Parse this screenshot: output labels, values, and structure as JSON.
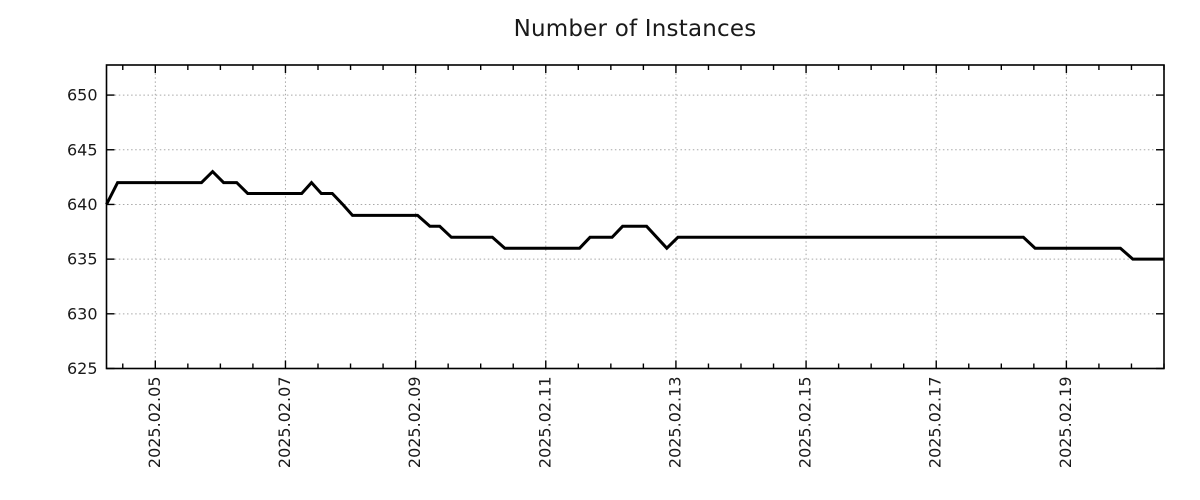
{
  "page": {
    "background": "#ffffff"
  },
  "chart_data": {
    "type": "line",
    "title": "Number of Instances",
    "xlabel": "",
    "ylabel": "",
    "legend": "none",
    "grid": "dotted gray lines at major ticks, both axes; ticks point inward and are mirrored on top and right edges",
    "x_unit": "days since 2025-02-04 00:00 (derived from visible date tick labels)",
    "xlim": [
      0.25,
      16.5
    ],
    "ylim": [
      625,
      652.75
    ],
    "y_ticks": [
      625,
      630,
      635,
      640,
      645,
      650
    ],
    "x_ticks": [
      {
        "day": 1,
        "label": "2025.02.05"
      },
      {
        "day": 3,
        "label": "2025.02.07"
      },
      {
        "day": 5,
        "label": "2025.02.09"
      },
      {
        "day": 7,
        "label": "2025.02.11"
      },
      {
        "day": 9,
        "label": "2025.02.13"
      },
      {
        "day": 11,
        "label": "2025.02.15"
      },
      {
        "day": 13,
        "label": "2025.02.17"
      },
      {
        "day": 15,
        "label": "2025.02.19"
      }
    ],
    "x_minor_tick_step": 0.5,
    "colors": {
      "line": "#000000",
      "grid": "#a8a8a8",
      "axis": "#000000",
      "text": "#1a1a1a"
    },
    "series": [
      {
        "name": "instances",
        "color": "#000000",
        "line_width": 3,
        "points": [
          [
            0.25,
            640
          ],
          [
            0.42,
            642
          ],
          [
            1.71,
            642
          ],
          [
            1.88,
            643
          ],
          [
            2.05,
            642
          ],
          [
            2.25,
            642
          ],
          [
            2.42,
            641
          ],
          [
            3.25,
            641
          ],
          [
            3.4,
            642
          ],
          [
            3.55,
            641
          ],
          [
            3.72,
            641
          ],
          [
            3.88,
            640
          ],
          [
            4.03,
            639
          ],
          [
            5.03,
            639
          ],
          [
            5.22,
            638
          ],
          [
            5.37,
            638
          ],
          [
            5.55,
            637
          ],
          [
            6.18,
            637
          ],
          [
            6.37,
            636
          ],
          [
            7.52,
            636
          ],
          [
            7.68,
            637
          ],
          [
            8.02,
            637
          ],
          [
            8.18,
            638
          ],
          [
            8.55,
            638
          ],
          [
            8.86,
            636
          ],
          [
            9.03,
            637
          ],
          [
            14.34,
            637
          ],
          [
            14.52,
            636
          ],
          [
            15.83,
            636
          ],
          [
            16.02,
            635
          ],
          [
            16.5,
            635
          ]
        ]
      }
    ]
  }
}
